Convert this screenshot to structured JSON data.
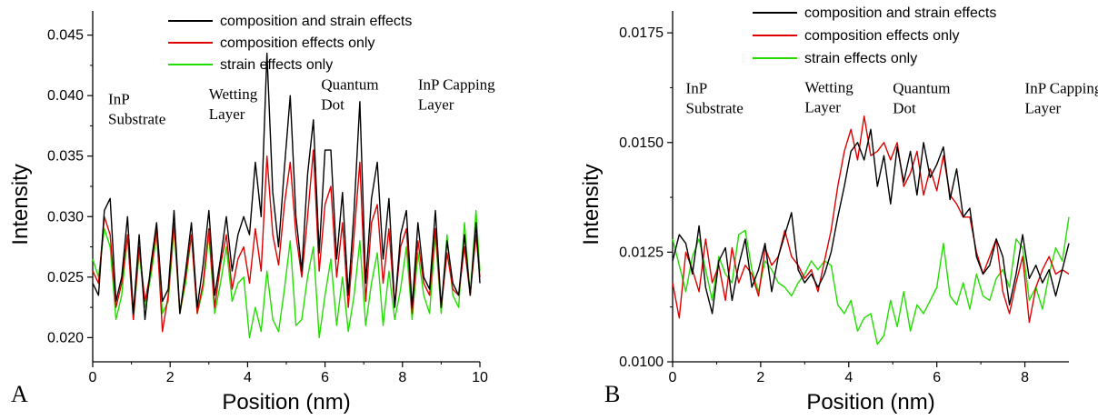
{
  "chart_data": [
    {
      "type": "line",
      "panel_label": "A",
      "xlabel": "Position (nm)",
      "ylabel": "Intensity",
      "xlim": [
        0,
        10
      ],
      "ylim": [
        0.018,
        0.047
      ],
      "xticks": [
        0,
        2,
        4,
        6,
        8,
        10
      ],
      "xtick_labels": [
        "0",
        "2",
        "4",
        "6",
        "8",
        "10"
      ],
      "yticks": [
        0.02,
        0.025,
        0.03,
        0.035,
        0.04,
        0.045
      ],
      "ytick_labels": [
        "0.020",
        "0.025",
        "0.030",
        "0.035",
        "0.040",
        "0.045"
      ],
      "legend_position": "top",
      "annotations": [
        {
          "lines": [
            "InP",
            "Substrate"
          ],
          "x": 0.4,
          "y": 0.0393
        },
        {
          "lines": [
            "Wetting",
            "Layer"
          ],
          "x": 3.0,
          "y": 0.0397
        },
        {
          "lines": [
            "Quantum",
            "Dot"
          ],
          "x": 5.9,
          "y": 0.0405
        },
        {
          "lines": [
            "InP Capping",
            "Layer"
          ],
          "x": 8.4,
          "y": 0.0405
        }
      ],
      "series": [
        {
          "name": "composition and strain effects",
          "color": "#000000",
          "x": [
            0,
            0.15,
            0.3,
            0.45,
            0.6,
            0.75,
            0.9,
            1.05,
            1.2,
            1.35,
            1.5,
            1.65,
            1.8,
            1.95,
            2.1,
            2.25,
            2.4,
            2.55,
            2.7,
            2.85,
            3.0,
            3.15,
            3.3,
            3.45,
            3.6,
            3.75,
            3.9,
            4.05,
            4.2,
            4.35,
            4.5,
            4.65,
            4.8,
            4.95,
            5.1,
            5.25,
            5.4,
            5.55,
            5.7,
            5.85,
            6.0,
            6.15,
            6.3,
            6.45,
            6.6,
            6.75,
            6.9,
            7.05,
            7.2,
            7.35,
            7.5,
            7.65,
            7.8,
            7.95,
            8.1,
            8.25,
            8.4,
            8.55,
            8.7,
            8.85,
            9.0,
            9.15,
            9.3,
            9.45,
            9.6,
            9.75,
            9.9,
            10.0
          ],
          "y": [
            0.0245,
            0.0235,
            0.0305,
            0.0315,
            0.023,
            0.025,
            0.03,
            0.022,
            0.0285,
            0.0215,
            0.026,
            0.0295,
            0.023,
            0.024,
            0.0305,
            0.022,
            0.0255,
            0.0295,
            0.0225,
            0.026,
            0.0305,
            0.0235,
            0.0265,
            0.03,
            0.0255,
            0.0285,
            0.03,
            0.0285,
            0.0345,
            0.03,
            0.0435,
            0.032,
            0.0275,
            0.034,
            0.04,
            0.03,
            0.0255,
            0.0335,
            0.038,
            0.027,
            0.0355,
            0.0355,
            0.0265,
            0.032,
            0.0235,
            0.0305,
            0.0395,
            0.0245,
            0.0315,
            0.0345,
            0.0265,
            0.0315,
            0.0225,
            0.0285,
            0.0305,
            0.0225,
            0.0295,
            0.025,
            0.024,
            0.0305,
            0.0225,
            0.028,
            0.0245,
            0.0235,
            0.0285,
            0.0235,
            0.0295,
            0.0245
          ]
        },
        {
          "name": "composition effects only",
          "color": "#e00000",
          "x": [
            0,
            0.15,
            0.3,
            0.45,
            0.6,
            0.75,
            0.9,
            1.05,
            1.2,
            1.35,
            1.5,
            1.65,
            1.8,
            1.95,
            2.1,
            2.25,
            2.4,
            2.55,
            2.7,
            2.85,
            3.0,
            3.15,
            3.3,
            3.45,
            3.6,
            3.75,
            3.9,
            4.05,
            4.2,
            4.35,
            4.5,
            4.65,
            4.8,
            4.95,
            5.1,
            5.25,
            5.4,
            5.55,
            5.7,
            5.85,
            6.0,
            6.15,
            6.3,
            6.45,
            6.6,
            6.75,
            6.9,
            7.05,
            7.2,
            7.35,
            7.5,
            7.65,
            7.8,
            7.95,
            8.1,
            8.25,
            8.4,
            8.55,
            8.7,
            8.85,
            9.0,
            9.15,
            9.3,
            9.45,
            9.6,
            9.75,
            9.9,
            10.0
          ],
          "y": [
            0.0255,
            0.0245,
            0.03,
            0.0285,
            0.0225,
            0.0245,
            0.0285,
            0.0215,
            0.0275,
            0.023,
            0.0255,
            0.029,
            0.0205,
            0.0235,
            0.0295,
            0.022,
            0.025,
            0.0285,
            0.022,
            0.0245,
            0.029,
            0.0225,
            0.026,
            0.0285,
            0.024,
            0.0265,
            0.0275,
            0.0245,
            0.029,
            0.0255,
            0.035,
            0.0285,
            0.026,
            0.031,
            0.0345,
            0.0285,
            0.025,
            0.03,
            0.0355,
            0.0255,
            0.031,
            0.0325,
            0.025,
            0.0295,
            0.0225,
            0.0285,
            0.0345,
            0.023,
            0.0295,
            0.031,
            0.0245,
            0.029,
            0.0225,
            0.0275,
            0.029,
            0.022,
            0.028,
            0.0245,
            0.0235,
            0.029,
            0.0225,
            0.027,
            0.024,
            0.0235,
            0.0275,
            0.0235,
            0.0285,
            0.025
          ]
        },
        {
          "name": "strain effects only",
          "color": "#22dd00",
          "x": [
            0,
            0.15,
            0.3,
            0.45,
            0.6,
            0.75,
            0.9,
            1.05,
            1.2,
            1.35,
            1.5,
            1.65,
            1.8,
            1.95,
            2.1,
            2.25,
            2.4,
            2.55,
            2.7,
            2.85,
            3.0,
            3.15,
            3.3,
            3.45,
            3.6,
            3.75,
            3.9,
            4.05,
            4.2,
            4.35,
            4.5,
            4.65,
            4.8,
            4.95,
            5.1,
            5.25,
            5.4,
            5.55,
            5.7,
            5.85,
            6.0,
            6.15,
            6.3,
            6.45,
            6.6,
            6.75,
            6.9,
            7.05,
            7.2,
            7.35,
            7.5,
            7.65,
            7.8,
            7.95,
            8.1,
            8.25,
            8.4,
            8.55,
            8.7,
            8.85,
            9.0,
            9.15,
            9.3,
            9.45,
            9.6,
            9.75,
            9.9,
            10.0
          ],
          "y": [
            0.0265,
            0.025,
            0.029,
            0.0275,
            0.0215,
            0.0235,
            0.0285,
            0.0215,
            0.027,
            0.0225,
            0.025,
            0.0285,
            0.022,
            0.023,
            0.029,
            0.022,
            0.0245,
            0.0285,
            0.022,
            0.024,
            0.0285,
            0.022,
            0.0245,
            0.0275,
            0.023,
            0.0245,
            0.025,
            0.02,
            0.0225,
            0.0205,
            0.0255,
            0.0215,
            0.0205,
            0.024,
            0.028,
            0.021,
            0.0215,
            0.025,
            0.0275,
            0.02,
            0.0235,
            0.0265,
            0.021,
            0.025,
            0.0205,
            0.0235,
            0.028,
            0.021,
            0.0245,
            0.027,
            0.021,
            0.0255,
            0.0215,
            0.024,
            0.0275,
            0.0215,
            0.027,
            0.0235,
            0.022,
            0.0285,
            0.022,
            0.0285,
            0.0235,
            0.0225,
            0.0295,
            0.0235,
            0.0305,
            0.0255
          ]
        }
      ]
    },
    {
      "type": "line",
      "panel_label": "B",
      "xlabel": "Position (nm)",
      "ylabel": "Intensity",
      "xlim": [
        0,
        9
      ],
      "ylim": [
        0.01,
        0.018
      ],
      "xticks": [
        0,
        2,
        4,
        6,
        8
      ],
      "xtick_labels": [
        "0",
        "2",
        "4",
        "6",
        "8"
      ],
      "yticks": [
        0.01,
        0.0125,
        0.015,
        0.0175
      ],
      "ytick_labels": [
        "0.0100",
        "0.0125",
        "0.0150",
        "0.0175"
      ],
      "legend_position": "top",
      "annotations": [
        {
          "lines": [
            "InP",
            "Substrate"
          ],
          "x": 0.3,
          "y": 0.01612
        },
        {
          "lines": [
            "Wetting",
            "Layer"
          ],
          "x": 3.0,
          "y": 0.01615
        },
        {
          "lines": [
            "Quantum",
            "Dot"
          ],
          "x": 5.0,
          "y": 0.01612
        },
        {
          "lines": [
            "InP Capping",
            "Layer"
          ],
          "x": 8.0,
          "y": 0.01612
        }
      ],
      "series": [
        {
          "name": "composition and strain effects",
          "color": "#000000",
          "x": [
            0,
            0.15,
            0.3,
            0.45,
            0.6,
            0.75,
            0.9,
            1.05,
            1.2,
            1.35,
            1.5,
            1.65,
            1.8,
            1.95,
            2.1,
            2.25,
            2.4,
            2.55,
            2.7,
            2.85,
            3.0,
            3.15,
            3.3,
            3.45,
            3.6,
            3.75,
            3.9,
            4.05,
            4.2,
            4.35,
            4.5,
            4.65,
            4.8,
            4.95,
            5.1,
            5.25,
            5.4,
            5.55,
            5.7,
            5.85,
            6.0,
            6.15,
            6.3,
            6.45,
            6.6,
            6.75,
            6.9,
            7.05,
            7.2,
            7.35,
            7.5,
            7.65,
            7.8,
            7.95,
            8.1,
            8.25,
            8.4,
            8.55,
            8.7,
            8.85,
            9.0
          ],
          "y": [
            0.0123,
            0.0129,
            0.0127,
            0.012,
            0.0131,
            0.0117,
            0.0111,
            0.0123,
            0.0126,
            0.0114,
            0.0122,
            0.0128,
            0.0117,
            0.0121,
            0.0127,
            0.0116,
            0.0124,
            0.0129,
            0.0134,
            0.0121,
            0.0118,
            0.012,
            0.0117,
            0.012,
            0.0125,
            0.0133,
            0.014,
            0.0148,
            0.015,
            0.0146,
            0.0153,
            0.014,
            0.0147,
            0.0136,
            0.0149,
            0.0141,
            0.0148,
            0.0138,
            0.015,
            0.0142,
            0.0145,
            0.0149,
            0.0137,
            0.0144,
            0.0133,
            0.0135,
            0.0124,
            0.012,
            0.0122,
            0.0128,
            0.0124,
            0.0113,
            0.012,
            0.0129,
            0.0119,
            0.0122,
            0.0118,
            0.0121,
            0.0115,
            0.0121,
            0.0127
          ]
        },
        {
          "name": "composition effects only",
          "color": "#e00000",
          "x": [
            0,
            0.15,
            0.3,
            0.45,
            0.6,
            0.75,
            0.9,
            1.05,
            1.2,
            1.35,
            1.5,
            1.65,
            1.8,
            1.95,
            2.1,
            2.25,
            2.4,
            2.55,
            2.7,
            2.85,
            3.0,
            3.15,
            3.3,
            3.45,
            3.6,
            3.75,
            3.9,
            4.05,
            4.2,
            4.35,
            4.5,
            4.65,
            4.8,
            4.95,
            5.1,
            5.25,
            5.4,
            5.55,
            5.7,
            5.85,
            6.0,
            6.15,
            6.3,
            6.45,
            6.6,
            6.75,
            6.9,
            7.05,
            7.2,
            7.35,
            7.5,
            7.65,
            7.8,
            7.95,
            8.1,
            8.25,
            8.4,
            8.55,
            8.7,
            8.85,
            9.0
          ],
          "y": [
            0.0118,
            0.011,
            0.0125,
            0.0121,
            0.0116,
            0.0128,
            0.0118,
            0.0122,
            0.0114,
            0.0126,
            0.0118,
            0.0122,
            0.012,
            0.0115,
            0.0126,
            0.0122,
            0.0124,
            0.013,
            0.0124,
            0.0122,
            0.0119,
            0.0121,
            0.0116,
            0.0123,
            0.013,
            0.014,
            0.0148,
            0.0153,
            0.0146,
            0.0156,
            0.0147,
            0.0148,
            0.015,
            0.0146,
            0.015,
            0.014,
            0.0143,
            0.0148,
            0.0138,
            0.0144,
            0.0139,
            0.0147,
            0.0138,
            0.0136,
            0.0133,
            0.0133,
            0.0125,
            0.012,
            0.0124,
            0.0128,
            0.0116,
            0.0111,
            0.0118,
            0.0124,
            0.0109,
            0.0117,
            0.0121,
            0.0124,
            0.012,
            0.0121,
            0.012
          ]
        },
        {
          "name": "strain effects only",
          "color": "#22dd00",
          "x": [
            0,
            0.15,
            0.3,
            0.45,
            0.6,
            0.75,
            0.9,
            1.05,
            1.2,
            1.35,
            1.5,
            1.65,
            1.8,
            1.95,
            2.1,
            2.25,
            2.4,
            2.55,
            2.7,
            2.85,
            3.0,
            3.15,
            3.3,
            3.45,
            3.6,
            3.75,
            3.9,
            4.05,
            4.2,
            4.35,
            4.5,
            4.65,
            4.8,
            4.95,
            5.1,
            5.25,
            5.4,
            5.55,
            5.7,
            5.85,
            6.0,
            6.15,
            6.3,
            6.45,
            6.6,
            6.75,
            6.9,
            7.05,
            7.2,
            7.35,
            7.5,
            7.65,
            7.8,
            7.95,
            8.1,
            8.25,
            8.4,
            8.55,
            8.7,
            8.85,
            9.0
          ],
          "y": [
            0.0128,
            0.0122,
            0.0116,
            0.0124,
            0.0128,
            0.0121,
            0.0114,
            0.0124,
            0.012,
            0.0118,
            0.0129,
            0.013,
            0.0121,
            0.0116,
            0.0123,
            0.0121,
            0.0118,
            0.0117,
            0.0115,
            0.0118,
            0.012,
            0.0123,
            0.0121,
            0.0123,
            0.0122,
            0.0113,
            0.0111,
            0.0114,
            0.0107,
            0.011,
            0.0111,
            0.0104,
            0.0106,
            0.0114,
            0.0108,
            0.0116,
            0.0107,
            0.0113,
            0.0111,
            0.0114,
            0.0117,
            0.0127,
            0.0115,
            0.0113,
            0.0118,
            0.0112,
            0.012,
            0.0115,
            0.0114,
            0.0119,
            0.0121,
            0.0117,
            0.0128,
            0.0126,
            0.0114,
            0.0117,
            0.0112,
            0.012,
            0.0126,
            0.0123,
            0.0133
          ]
        }
      ]
    }
  ]
}
